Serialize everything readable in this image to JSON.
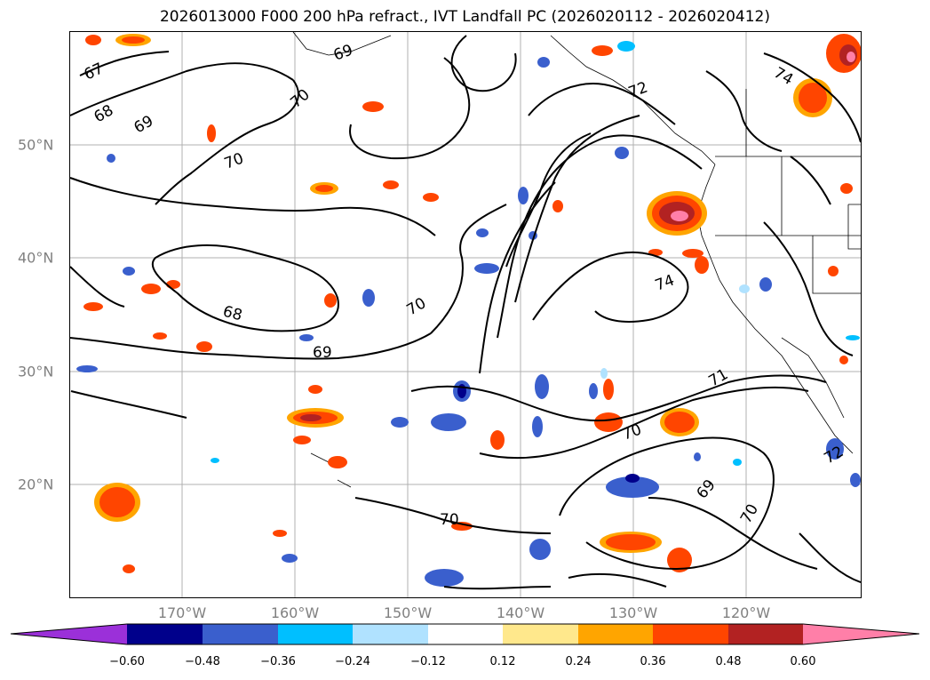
{
  "title": "2026013000 F000 200 hPa refract., IVT Landfall PC (2026020112 - 2026020412)",
  "lat_labels": [
    "50°N",
    "40°N",
    "30°N",
    "20°N"
  ],
  "lon_labels": [
    "170°W",
    "160°W",
    "150°W",
    "140°W",
    "130°W",
    "120°W"
  ],
  "contour_labels": [
    "67",
    "68",
    "69",
    "69",
    "70",
    "70",
    "68",
    "69",
    "70",
    "72",
    "74",
    "74",
    "71",
    "70",
    "69",
    "70",
    "70",
    "72"
  ],
  "colorbar": {
    "ticks": [
      "−0.60",
      "−0.48",
      "−0.36",
      "−0.24",
      "−0.12",
      "0.12",
      "0.24",
      "0.36",
      "0.48",
      "0.60"
    ],
    "colors": [
      "#9b30d9",
      "#00008b",
      "#3a5fcd",
      "#00bfff",
      "#b0e2ff",
      "#ffffff",
      "#ffe88c",
      "#ffa500",
      "#ff4500",
      "#b22222",
      "#ff7fa8"
    ]
  },
  "anomaly_colors": {
    "neg_strong": "#00008b",
    "neg_mid": "#3a5fcd",
    "neg_weak": "#00bfff",
    "neg_faint": "#b0e2ff",
    "pos_faint": "#ffe88c",
    "pos_weak": "#ffa500",
    "pos_mid": "#ff4500",
    "pos_strong": "#b22222",
    "pos_max": "#ff7fa8"
  }
}
